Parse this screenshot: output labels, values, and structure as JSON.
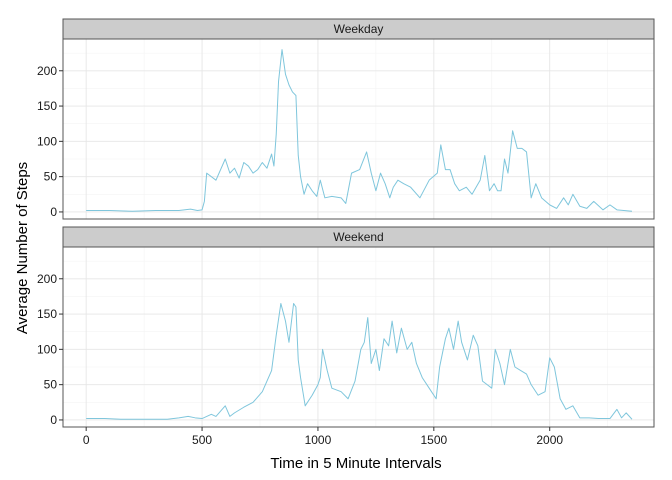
{
  "chart_data": {
    "type": "line",
    "facets": [
      "Weekday",
      "Weekend"
    ],
    "xlabel": "Time in 5 Minute Intervals",
    "ylabel": "Average Number of Steps",
    "xlim": [
      -100,
      2450
    ],
    "ylim": [
      -10,
      245
    ],
    "x_ticks": [
      0,
      500,
      1000,
      1500,
      2000
    ],
    "y_ticks": [
      0,
      50,
      100,
      150,
      200
    ],
    "grid": true,
    "line_color": "#7fc6dc",
    "series": [
      {
        "facet": "Weekday",
        "points": [
          [
            0,
            2
          ],
          [
            100,
            2
          ],
          [
            200,
            1
          ],
          [
            300,
            2
          ],
          [
            400,
            2
          ],
          [
            450,
            4
          ],
          [
            480,
            2
          ],
          [
            500,
            3
          ],
          [
            510,
            15
          ],
          [
            520,
            55
          ],
          [
            560,
            45
          ],
          [
            600,
            75
          ],
          [
            620,
            55
          ],
          [
            640,
            62
          ],
          [
            660,
            48
          ],
          [
            680,
            70
          ],
          [
            700,
            65
          ],
          [
            720,
            55
          ],
          [
            740,
            60
          ],
          [
            760,
            70
          ],
          [
            780,
            62
          ],
          [
            800,
            82
          ],
          [
            810,
            65
          ],
          [
            820,
            110
          ],
          [
            830,
            185
          ],
          [
            845,
            230
          ],
          [
            860,
            195
          ],
          [
            875,
            180
          ],
          [
            890,
            170
          ],
          [
            905,
            165
          ],
          [
            915,
            80
          ],
          [
            925,
            50
          ],
          [
            940,
            25
          ],
          [
            955,
            40
          ],
          [
            975,
            30
          ],
          [
            995,
            22
          ],
          [
            1010,
            45
          ],
          [
            1030,
            20
          ],
          [
            1060,
            22
          ],
          [
            1100,
            20
          ],
          [
            1120,
            12
          ],
          [
            1145,
            55
          ],
          [
            1180,
            60
          ],
          [
            1210,
            85
          ],
          [
            1230,
            55
          ],
          [
            1250,
            30
          ],
          [
            1270,
            55
          ],
          [
            1290,
            40
          ],
          [
            1310,
            20
          ],
          [
            1325,
            35
          ],
          [
            1345,
            45
          ],
          [
            1370,
            40
          ],
          [
            1400,
            35
          ],
          [
            1440,
            20
          ],
          [
            1480,
            45
          ],
          [
            1515,
            55
          ],
          [
            1530,
            95
          ],
          [
            1550,
            60
          ],
          [
            1570,
            60
          ],
          [
            1590,
            40
          ],
          [
            1610,
            30
          ],
          [
            1640,
            35
          ],
          [
            1665,
            25
          ],
          [
            1700,
            45
          ],
          [
            1720,
            80
          ],
          [
            1740,
            30
          ],
          [
            1760,
            40
          ],
          [
            1775,
            30
          ],
          [
            1790,
            30
          ],
          [
            1805,
            75
          ],
          [
            1820,
            55
          ],
          [
            1840,
            115
          ],
          [
            1860,
            90
          ],
          [
            1880,
            90
          ],
          [
            1900,
            85
          ],
          [
            1920,
            20
          ],
          [
            1940,
            40
          ],
          [
            1965,
            20
          ],
          [
            2000,
            10
          ],
          [
            2030,
            5
          ],
          [
            2060,
            20
          ],
          [
            2080,
            10
          ],
          [
            2100,
            25
          ],
          [
            2130,
            8
          ],
          [
            2160,
            5
          ],
          [
            2190,
            15
          ],
          [
            2230,
            3
          ],
          [
            2260,
            10
          ],
          [
            2290,
            3
          ],
          [
            2320,
            2
          ],
          [
            2355,
            1
          ]
        ]
      },
      {
        "facet": "Weekend",
        "points": [
          [
            0,
            2
          ],
          [
            80,
            2
          ],
          [
            150,
            1
          ],
          [
            250,
            1
          ],
          [
            350,
            1
          ],
          [
            400,
            3
          ],
          [
            440,
            5
          ],
          [
            470,
            3
          ],
          [
            500,
            2
          ],
          [
            540,
            8
          ],
          [
            560,
            5
          ],
          [
            600,
            20
          ],
          [
            620,
            5
          ],
          [
            640,
            10
          ],
          [
            680,
            18
          ],
          [
            720,
            25
          ],
          [
            760,
            40
          ],
          [
            800,
            70
          ],
          [
            820,
            120
          ],
          [
            840,
            165
          ],
          [
            860,
            140
          ],
          [
            875,
            110
          ],
          [
            895,
            165
          ],
          [
            905,
            160
          ],
          [
            915,
            85
          ],
          [
            925,
            60
          ],
          [
            935,
            40
          ],
          [
            945,
            20
          ],
          [
            975,
            35
          ],
          [
            1000,
            50
          ],
          [
            1010,
            60
          ],
          [
            1020,
            100
          ],
          [
            1040,
            70
          ],
          [
            1060,
            45
          ],
          [
            1100,
            40
          ],
          [
            1130,
            30
          ],
          [
            1160,
            55
          ],
          [
            1185,
            100
          ],
          [
            1200,
            110
          ],
          [
            1215,
            145
          ],
          [
            1230,
            80
          ],
          [
            1250,
            100
          ],
          [
            1265,
            70
          ],
          [
            1285,
            115
          ],
          [
            1305,
            105
          ],
          [
            1320,
            140
          ],
          [
            1340,
            95
          ],
          [
            1360,
            130
          ],
          [
            1385,
            100
          ],
          [
            1405,
            110
          ],
          [
            1425,
            80
          ],
          [
            1450,
            60
          ],
          [
            1480,
            45
          ],
          [
            1510,
            30
          ],
          [
            1525,
            75
          ],
          [
            1550,
            115
          ],
          [
            1565,
            130
          ],
          [
            1585,
            100
          ],
          [
            1605,
            140
          ],
          [
            1620,
            110
          ],
          [
            1645,
            85
          ],
          [
            1670,
            120
          ],
          [
            1690,
            105
          ],
          [
            1710,
            55
          ],
          [
            1730,
            50
          ],
          [
            1750,
            45
          ],
          [
            1765,
            100
          ],
          [
            1785,
            80
          ],
          [
            1805,
            50
          ],
          [
            1830,
            100
          ],
          [
            1850,
            75
          ],
          [
            1875,
            70
          ],
          [
            1900,
            65
          ],
          [
            1920,
            50
          ],
          [
            1950,
            35
          ],
          [
            1980,
            40
          ],
          [
            2000,
            88
          ],
          [
            2020,
            75
          ],
          [
            2045,
            30
          ],
          [
            2070,
            15
          ],
          [
            2100,
            20
          ],
          [
            2130,
            3
          ],
          [
            2170,
            3
          ],
          [
            2210,
            2
          ],
          [
            2260,
            2
          ],
          [
            2290,
            15
          ],
          [
            2310,
            3
          ],
          [
            2330,
            10
          ],
          [
            2355,
            1
          ]
        ]
      }
    ]
  }
}
